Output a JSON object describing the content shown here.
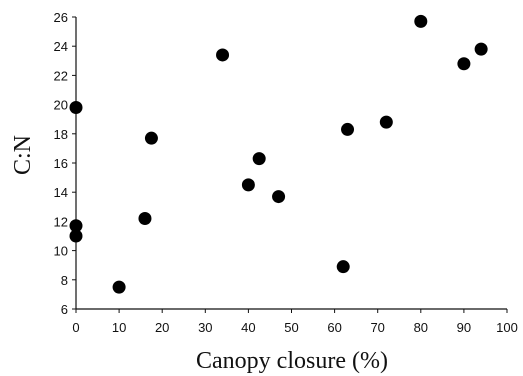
{
  "chart_data": {
    "type": "scatter",
    "title": "",
    "xlabel": "Canopy closure (%)",
    "ylabel": "C:N",
    "xlim": [
      0,
      100
    ],
    "ylim": [
      6,
      26
    ],
    "x_ticks": [
      0,
      10,
      20,
      30,
      40,
      50,
      60,
      70,
      80,
      90,
      100
    ],
    "y_ticks": [
      6,
      8,
      10,
      12,
      14,
      16,
      18,
      20,
      22,
      24,
      26
    ],
    "grid": false,
    "legend": "none",
    "marker_color": "#000000",
    "points": [
      {
        "x": 0,
        "y": 19.8
      },
      {
        "x": 0,
        "y": 11.7
      },
      {
        "x": 0,
        "y": 11.0
      },
      {
        "x": 10,
        "y": 7.5
      },
      {
        "x": 16,
        "y": 12.2
      },
      {
        "x": 17.5,
        "y": 17.7
      },
      {
        "x": 34,
        "y": 23.4
      },
      {
        "x": 40,
        "y": 14.5
      },
      {
        "x": 42.5,
        "y": 16.3
      },
      {
        "x": 47,
        "y": 13.7
      },
      {
        "x": 62,
        "y": 8.9
      },
      {
        "x": 63,
        "y": 18.3
      },
      {
        "x": 72,
        "y": 18.8
      },
      {
        "x": 80,
        "y": 25.7
      },
      {
        "x": 90,
        "y": 22.8
      },
      {
        "x": 94,
        "y": 23.8
      }
    ]
  }
}
